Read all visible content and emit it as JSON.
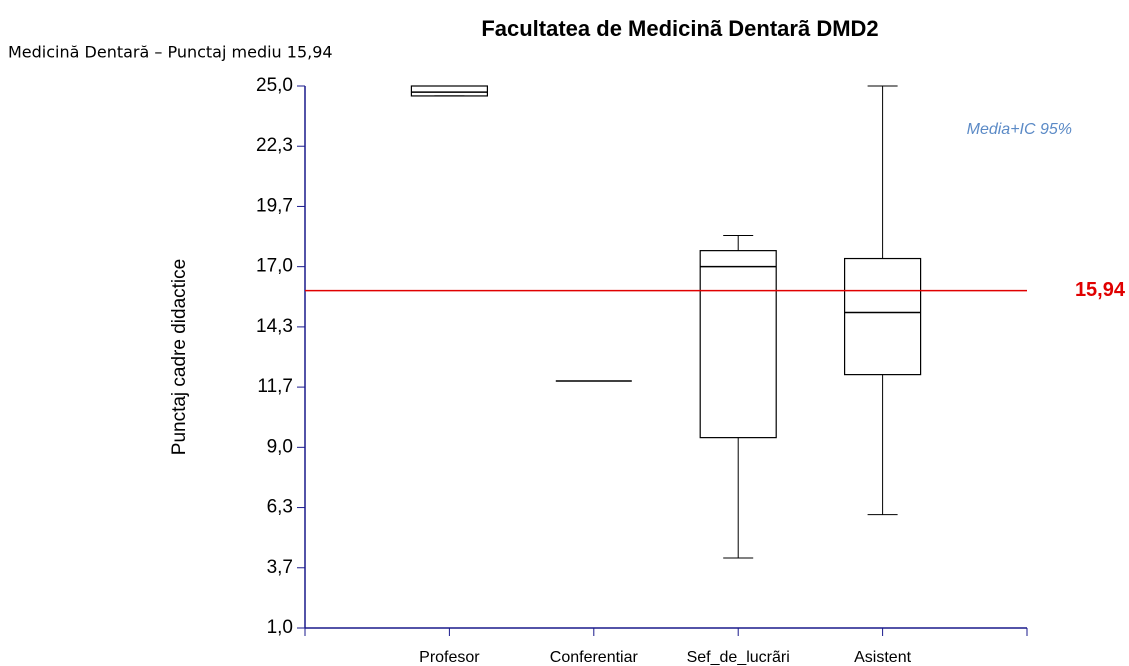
{
  "chart_data": {
    "type": "box",
    "title": "Facultatea de Medicinã  Dentarã DMD2",
    "subtitle": "Medicină Dentară – Punctaj mediu 15,94",
    "y_label": "Punctaj cadre didactice",
    "annotation": "Media+IC 95%",
    "categories": [
      "Profesor",
      "Conferentiar",
      "Sef_de_lucrãri",
      "Asistent"
    ],
    "boxes": [
      {
        "min": 24.56,
        "q1": 24.56,
        "median": 24.73,
        "q3": 25.0,
        "max": 25.0
      },
      {
        "min": 11.94,
        "q1": 11.94,
        "median": 11.94,
        "q3": 11.94,
        "max": 11.94
      },
      {
        "min": 4.1,
        "q1": 9.43,
        "median": 17.0,
        "q3": 17.71,
        "max": 18.38
      },
      {
        "min": 6.02,
        "q1": 12.22,
        "median": 14.97,
        "q3": 17.36,
        "max": 25.0
      }
    ],
    "color": "#000000",
    "reference_line": {
      "value": 15.94,
      "label": "15,94",
      "color": "#e00000"
    },
    "ylim": [
      1.0,
      25.0
    ],
    "yticks": [
      {
        "value": 1.0,
        "label": "1,0"
      },
      {
        "value": 3.667,
        "label": "3,7"
      },
      {
        "value": 6.333,
        "label": "6,3"
      },
      {
        "value": 9.0,
        "label": "9,0"
      },
      {
        "value": 11.667,
        "label": "11,7"
      },
      {
        "value": 14.333,
        "label": "14,3"
      },
      {
        "value": 17.0,
        "label": "17,0"
      },
      {
        "value": 19.667,
        "label": "19,7"
      },
      {
        "value": 22.333,
        "label": "22,3"
      },
      {
        "value": 25.0,
        "label": "25,0"
      }
    ]
  }
}
